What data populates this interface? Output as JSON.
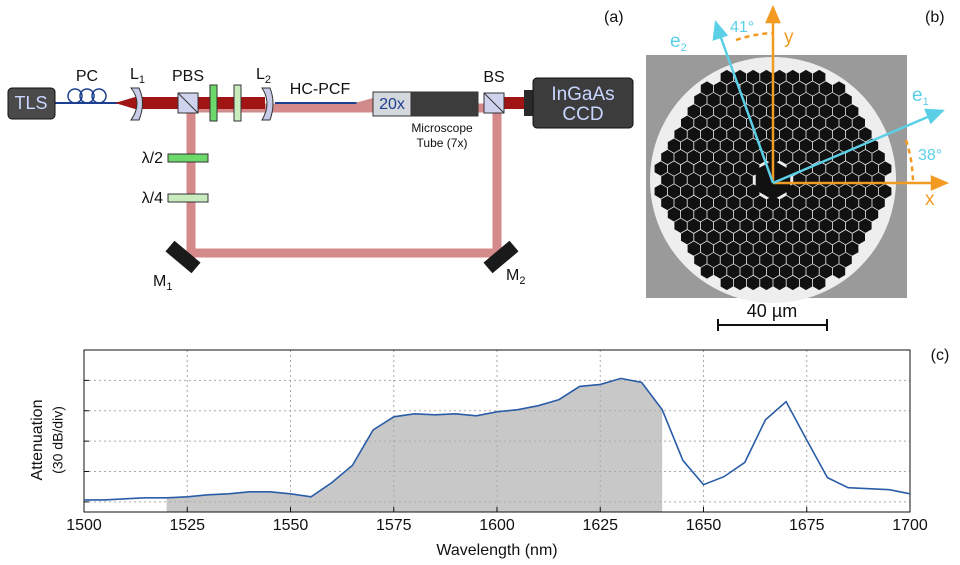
{
  "panel_a": {
    "label": "(a)",
    "tls": "TLS",
    "pc": "PC",
    "l1": {
      "text": "L",
      "sub": "1"
    },
    "pbs": "PBS",
    "l2": {
      "text": "L",
      "sub": "2"
    },
    "hc_pcf": "HC-PCF",
    "objective": "20x",
    "tube": [
      "Microscope",
      "Tube (7x)"
    ],
    "bs": "BS",
    "camera": [
      "InGaAs",
      "CCD"
    ],
    "half_wave": "λ/2",
    "quarter_wave": "λ/4",
    "m1": {
      "text": "M",
      "sub": "1"
    },
    "m2": {
      "text": "M",
      "sub": "2"
    }
  },
  "panel_b": {
    "label": "(b)",
    "e1": {
      "text": "e",
      "sub": "1"
    },
    "e2": {
      "text": "e",
      "sub": "2"
    },
    "x": "x",
    "y": "y",
    "angle_e2": "41°",
    "angle_e1": "38°",
    "scale_bar": "40 µm"
  },
  "chart_data": {
    "type": "line",
    "label": "(c)",
    "x_label": "Wavelength (nm)",
    "y_label": [
      "Attenuation",
      "(30 dB/div)"
    ],
    "x": [
      1500,
      1505,
      1510,
      1515,
      1520,
      1525,
      1530,
      1535,
      1540,
      1545,
      1550,
      1555,
      1560,
      1565,
      1570,
      1575,
      1580,
      1585,
      1590,
      1595,
      1600,
      1605,
      1610,
      1615,
      1620,
      1625,
      1630,
      1635,
      1640,
      1645,
      1650,
      1655,
      1660,
      1665,
      1670,
      1675,
      1680,
      1685,
      1690,
      1695,
      1700
    ],
    "values": [
      12,
      12,
      13,
      14,
      14,
      15,
      17,
      18,
      20,
      20,
      18,
      15,
      29,
      46,
      81,
      94,
      97,
      96,
      97,
      95,
      99,
      101,
      105,
      111,
      124,
      126,
      132,
      128,
      101,
      51,
      27,
      35,
      49,
      91,
      109,
      71,
      34,
      24,
      23,
      22,
      18
    ],
    "color": "#2a5da8",
    "shaded_range": [
      1520,
      1640
    ],
    "shade_color": "#c8c8c8",
    "xlim": [
      1500,
      1700
    ],
    "xticks": [
      1500,
      1525,
      1550,
      1575,
      1600,
      1625,
      1650,
      1675,
      1700
    ],
    "ylim": [
      0,
      160
    ],
    "yticks": [
      10,
      40,
      70,
      100,
      130
    ],
    "grid": true
  }
}
